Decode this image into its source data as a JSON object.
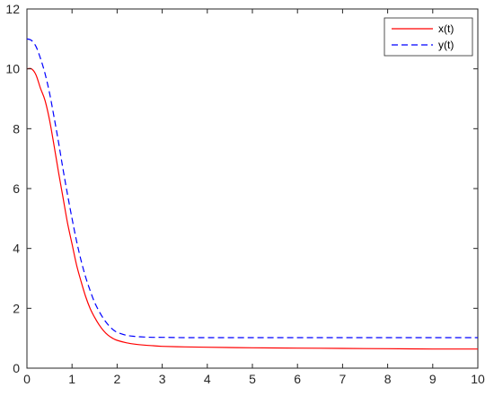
{
  "chart_data": {
    "type": "line",
    "title": "",
    "xlabel": "",
    "ylabel": "",
    "xlim": [
      0,
      10
    ],
    "ylim": [
      0,
      12
    ],
    "xticks": [
      "0",
      "1",
      "2",
      "3",
      "4",
      "5",
      "6",
      "7",
      "8",
      "9",
      "10"
    ],
    "yticks": [
      "0",
      "2",
      "4",
      "6",
      "8",
      "10",
      "12"
    ],
    "grid": false,
    "legend_position": "top-right",
    "series": [
      {
        "name": "x(t)",
        "color": "#ff0000",
        "style": "solid",
        "x": [
          0,
          0.1,
          0.2,
          0.3,
          0.4,
          0.5,
          0.6,
          0.7,
          0.8,
          0.9,
          1.0,
          1.1,
          1.2,
          1.3,
          1.4,
          1.5,
          1.6,
          1.7,
          1.8,
          1.9,
          2.0,
          2.2,
          2.4,
          2.6,
          2.8,
          3.0,
          3.5,
          4.0,
          5.0,
          6.0,
          7.0,
          8.0,
          9.0,
          10.0
        ],
        "y": [
          10.0,
          10.0,
          9.8,
          9.35,
          8.95,
          8.3,
          7.45,
          6.55,
          5.7,
          4.85,
          4.15,
          3.45,
          2.9,
          2.4,
          2.0,
          1.7,
          1.45,
          1.25,
          1.1,
          1.0,
          0.93,
          0.85,
          0.8,
          0.77,
          0.75,
          0.73,
          0.71,
          0.7,
          0.68,
          0.67,
          0.66,
          0.65,
          0.64,
          0.64
        ]
      },
      {
        "name": "y(t)",
        "color": "#0000ff",
        "style": "dashed",
        "x": [
          0,
          0.1,
          0.2,
          0.3,
          0.4,
          0.5,
          0.6,
          0.7,
          0.8,
          0.9,
          1.0,
          1.1,
          1.2,
          1.3,
          1.4,
          1.5,
          1.6,
          1.7,
          1.8,
          1.9,
          2.0,
          2.2,
          2.4,
          2.6,
          2.8,
          3.0,
          3.5,
          4.0,
          5.0,
          6.0,
          7.0,
          8.0,
          9.0,
          10.0
        ],
        "y": [
          11.0,
          10.95,
          10.75,
          10.35,
          9.85,
          9.2,
          8.4,
          7.55,
          6.65,
          5.8,
          5.0,
          4.25,
          3.6,
          3.05,
          2.6,
          2.2,
          1.9,
          1.65,
          1.45,
          1.3,
          1.2,
          1.1,
          1.06,
          1.04,
          1.03,
          1.03,
          1.02,
          1.02,
          1.02,
          1.02,
          1.02,
          1.02,
          1.02,
          1.02
        ]
      }
    ]
  }
}
